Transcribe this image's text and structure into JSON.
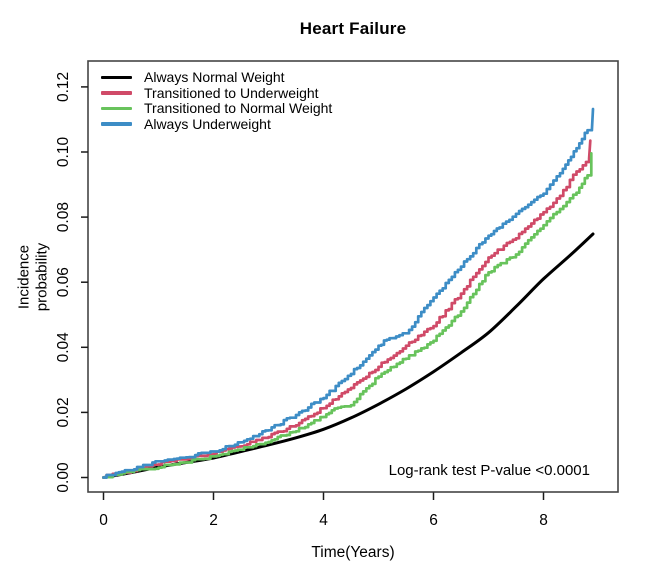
{
  "chart_data": {
    "type": "line",
    "title": "Heart Failure",
    "xlabel": "Time(Years)",
    "ylabel": "Incidence probability",
    "annotation": "Log-rank test P-value <0.0001",
    "x_ticks": [
      "0",
      "2",
      "4",
      "6",
      "8"
    ],
    "y_ticks": [
      "0.00",
      "0.02",
      "0.04",
      "0.06",
      "0.08",
      "0.10",
      "0.12"
    ],
    "xlim": [
      -0.31,
      9.25
    ],
    "ylim": [
      -0.005,
      0.128
    ],
    "grid": false,
    "legend_position": "top-left",
    "axis_color": "#454545",
    "tick_color": "#1a1a1a",
    "series": [
      {
        "name": "Always Normal Weight",
        "color": "#000000",
        "style": "smooth",
        "width": 3,
        "points": [
          [
            0,
            0
          ],
          [
            0.5,
            0.0015
          ],
          [
            1,
            0.0032
          ],
          [
            1.5,
            0.0046
          ],
          [
            2,
            0.006
          ],
          [
            2.5,
            0.008
          ],
          [
            3,
            0.01
          ],
          [
            3.5,
            0.0122
          ],
          [
            4,
            0.0148
          ],
          [
            4.5,
            0.0183
          ],
          [
            5,
            0.0225
          ],
          [
            5.5,
            0.0272
          ],
          [
            6,
            0.0325
          ],
          [
            6.5,
            0.0383
          ],
          [
            7,
            0.0445
          ],
          [
            7.5,
            0.0525
          ],
          [
            8,
            0.061
          ],
          [
            8.5,
            0.0685
          ],
          [
            8.9,
            0.0748
          ]
        ]
      },
      {
        "name": "Transitioned to Underweight",
        "color": "#D04A68",
        "style": "step",
        "width": 2.7,
        "points": [
          [
            0,
            0
          ],
          [
            0.5,
            0.002
          ],
          [
            1,
            0.004
          ],
          [
            1.5,
            0.0056
          ],
          [
            2,
            0.0072
          ],
          [
            2.5,
            0.0096
          ],
          [
            3,
            0.0124
          ],
          [
            3.5,
            0.016
          ],
          [
            4,
            0.0213
          ],
          [
            4.5,
            0.0275
          ],
          [
            5,
            0.034
          ],
          [
            5.5,
            0.0405
          ],
          [
            6,
            0.0465
          ],
          [
            6.5,
            0.0565
          ],
          [
            7,
            0.0676
          ],
          [
            7.5,
            0.0735
          ],
          [
            8,
            0.0815
          ],
          [
            8.3,
            0.0865
          ],
          [
            8.6,
            0.094
          ],
          [
            8.83,
            0.098
          ],
          [
            8.85,
            0.1035
          ]
        ]
      },
      {
        "name": "Transitioned to Normal Weight",
        "color": "#68C35C",
        "style": "step",
        "width": 2.7,
        "points": [
          [
            0,
            0
          ],
          [
            0.5,
            0.0016
          ],
          [
            1,
            0.003
          ],
          [
            1.5,
            0.0045
          ],
          [
            2,
            0.0063
          ],
          [
            2.5,
            0.0085
          ],
          [
            3,
            0.0109
          ],
          [
            3.5,
            0.0142
          ],
          [
            4,
            0.0186
          ],
          [
            4.2,
            0.0212
          ],
          [
            4.5,
            0.0222
          ],
          [
            5,
            0.031
          ],
          [
            5.5,
            0.0365
          ],
          [
            6,
            0.042
          ],
          [
            6.5,
            0.051
          ],
          [
            7,
            0.063
          ],
          [
            7.5,
            0.0685
          ],
          [
            8,
            0.0775
          ],
          [
            8.3,
            0.0825
          ],
          [
            8.6,
            0.0875
          ],
          [
            8.8,
            0.0928
          ],
          [
            8.87,
            0.0996
          ]
        ]
      },
      {
        "name": "Always Underweight",
        "color": "#3D8DC6",
        "style": "step",
        "width": 2.7,
        "points": [
          [
            0,
            0
          ],
          [
            0.5,
            0.0022
          ],
          [
            1,
            0.0047
          ],
          [
            1.5,
            0.0062
          ],
          [
            2,
            0.0078
          ],
          [
            2.5,
            0.0108
          ],
          [
            3,
            0.0145
          ],
          [
            3.5,
            0.0192
          ],
          [
            4,
            0.0244
          ],
          [
            4.5,
            0.0318
          ],
          [
            5,
            0.0405
          ],
          [
            5.2,
            0.0428
          ],
          [
            5.5,
            0.0442
          ],
          [
            6,
            0.0553
          ],
          [
            6.5,
            0.0648
          ],
          [
            7,
            0.0743
          ],
          [
            7.2,
            0.0768
          ],
          [
            7.5,
            0.081
          ],
          [
            8,
            0.0872
          ],
          [
            8.3,
            0.0935
          ],
          [
            8.5,
            0.0985
          ],
          [
            8.7,
            0.104
          ],
          [
            8.8,
            0.1067
          ],
          [
            8.88,
            0.1068
          ],
          [
            8.9,
            0.1132
          ]
        ]
      }
    ]
  }
}
